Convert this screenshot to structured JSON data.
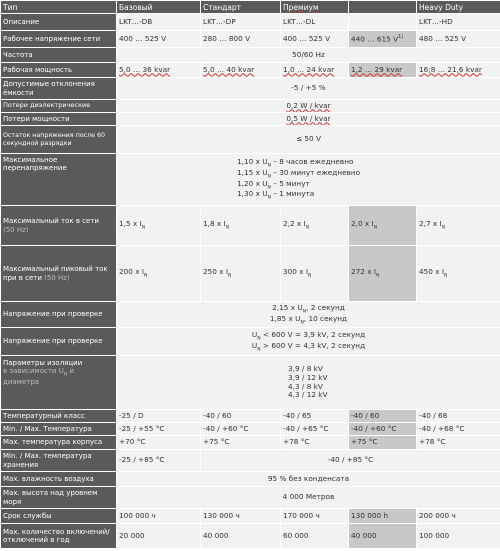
{
  "header": [
    "Тип",
    "Базовый",
    "Стандарт",
    "Премиум",
    "",
    "Heavy Duty"
  ],
  "rows": {
    "description": {
      "label": "Описание",
      "cells": [
        "LKT…-DB",
        "LKT…-DP",
        "LKT…-DL",
        "",
        "LKT…-HD"
      ]
    },
    "voltage": {
      "label": "Рабочее напряжение сети",
      "cells": [
        "400 … 525 V",
        "280 … 800 V",
        "400 … 525 V",
        "440 … 615 V",
        "480 … 525 V"
      ],
      "footnote": "1)"
    },
    "frequency": {
      "label": "Частота",
      "value": "50/60 Hz"
    },
    "power": {
      "label": "Рабочая мощность",
      "cells": [
        "5,0 … 36 kvar",
        "5,0 … 40 kvar",
        "1,0 … 24 kvar",
        "1,2 … 29 kvar",
        "16;8 … 21,6 kvar"
      ]
    },
    "tolerance": {
      "label": "Допустимые отклонения ёмкости",
      "value": "-5 / +5 %"
    },
    "dielectric_losses": {
      "label": "Потери диэлектрические",
      "value": "0,2 W / kvar"
    },
    "power_losses": {
      "label": "Потери мощности",
      "value": "0,5 W / kvar"
    },
    "residual_voltage": {
      "label": "Остаток напряжения после 60 секундной разрядки",
      "value": "≤ 50 V"
    },
    "max_overvoltage": {
      "label": "Максимальное перенапряжение",
      "lines": [
        {
          "pre": "1,10 x U",
          "sub": "N",
          "post": " – 8 часов ежедневно"
        },
        {
          "pre": "1,15 x U",
          "sub": "N",
          "post": " – 30 минут ежедневно"
        },
        {
          "pre": "1,20 x U",
          "sub": "N",
          "post": " – 5 минут"
        },
        {
          "pre": "1,30 x U",
          "sub": "N",
          "post": " – 1 минута"
        }
      ]
    },
    "max_current": {
      "label": "Максимальный ток в сети",
      "note": "(50 Hz)",
      "cells": [
        "1,5 x I",
        "1,8 x I",
        "2,2 x I",
        "2,0 x I",
        "2,7 x I"
      ],
      "sub": "N"
    },
    "max_peak_current": {
      "label": "Максимальный пиковый ток при в сети",
      "note": "(50 Hz)",
      "cells": [
        "200 x I",
        "250 x I",
        "300 x I",
        "272 x I",
        "450 x I"
      ],
      "sub": "N"
    },
    "test_voltage_1": {
      "label": "Напряжение при проверке",
      "lines": [
        {
          "pre": "2,15 x U",
          "sub": "N",
          "post": ", 2 секунд"
        },
        {
          "pre": "1,85 x U",
          "sub": "N",
          "post": ", 10 секунд"
        }
      ]
    },
    "test_voltage_2": {
      "label": "Напряжение при проверке",
      "lines": [
        {
          "pre": "U",
          "sub": "N",
          "post": " < 600 V = 3,9 kV, 2 секунд"
        },
        {
          "pre": "U",
          "sub": "N",
          "post": " > 600 V = 4,3 kV, 2 секунд"
        }
      ]
    },
    "insulation": {
      "label": "Параметры изоляции",
      "note": "в зависимости U",
      "note_sub": "N",
      "note_post": " и",
      "note2": "диаметра",
      "lines": [
        "3,9 / 8 kV",
        "3,9 / 12 kV",
        "4,3 / 8 kV",
        "4,3 / 12 kV"
      ]
    },
    "temp_class": {
      "label": "Температурный класс",
      "cells": [
        "-25 / D",
        "-40 / 60",
        "-40 / 65",
        "-40 / 60",
        "-40 / 68"
      ]
    },
    "temp_range": {
      "label": "Min. / Max. Температура",
      "cells": [
        "-25 / +55 °C",
        "-40 / +60 °C",
        "-40 / +65 °C",
        "-40 / +60 °C",
        "-40 / +68 °C"
      ]
    },
    "case_temp": {
      "label": "Max. температура корпуса",
      "cells": [
        "+70 °C",
        "+75 °C",
        "+78 °C",
        "+75 °C",
        "+78 °C"
      ]
    },
    "storage_temp": {
      "label": "Min. / Max. температура хранения",
      "cells": [
        "-25 / +85 °C",
        "-40 / +85 °C"
      ]
    },
    "humidity": {
      "label": "Max. влажность воздуха",
      "value": "95 % без конденсата"
    },
    "altitude": {
      "label": "Max. высота над уровнем моря",
      "value": "4 000 Метров"
    },
    "service_life": {
      "label": "Срок службы",
      "cells": [
        "100 000 ч",
        "130 000 ч",
        "170 000 ч",
        "130 000 h",
        "200 000 ч"
      ]
    },
    "switching": {
      "label": "Max. количество включений/отключений в год",
      "cells": [
        "20 000",
        "40 000",
        "60 000",
        "40 000",
        "100 000"
      ]
    }
  }
}
